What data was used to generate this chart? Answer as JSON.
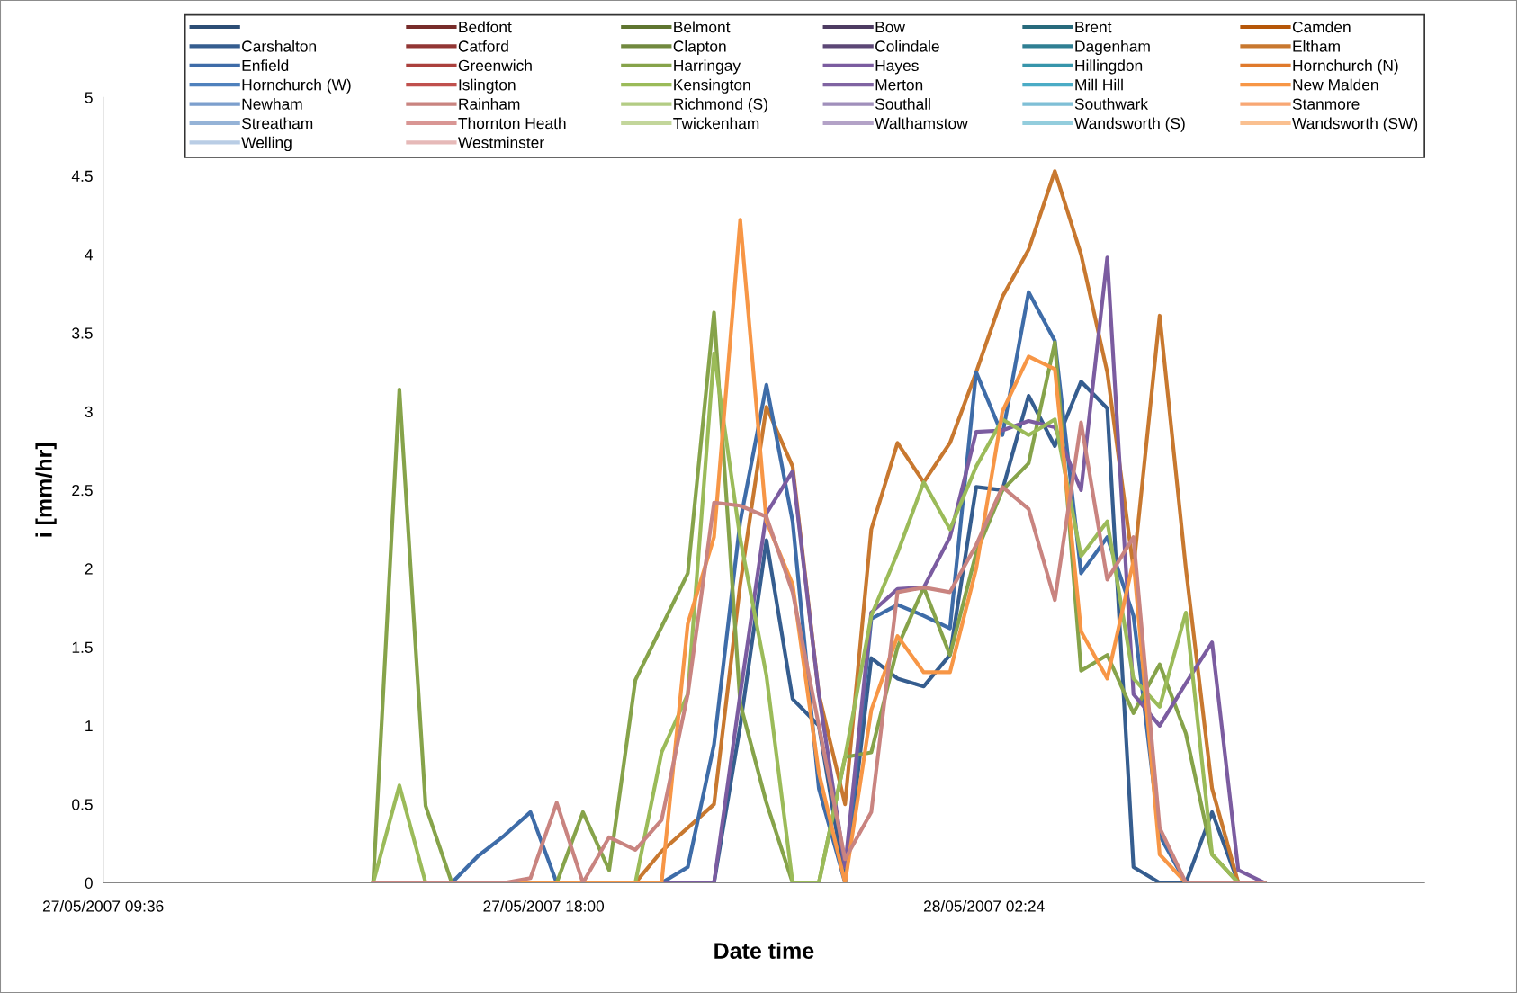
{
  "chart_data": {
    "type": "line",
    "xlabel": "Date time",
    "ylabel": "i [mm/hr]",
    "x": [
      "2007-05-27T14:45",
      "2007-05-27T15:15",
      "2007-05-27T15:45",
      "2007-05-27T16:15",
      "2007-05-27T16:45",
      "2007-05-27T17:15",
      "2007-05-27T17:45",
      "2007-05-27T18:15",
      "2007-05-27T18:45",
      "2007-05-27T19:15",
      "2007-05-27T19:45",
      "2007-05-27T20:15",
      "2007-05-27T20:45",
      "2007-05-27T21:15",
      "2007-05-27T21:45",
      "2007-05-27T22:15",
      "2007-05-27T22:45",
      "2007-05-27T23:15",
      "2007-05-27T23:45",
      "2007-05-28T00:15",
      "2007-05-28T00:45",
      "2007-05-28T01:15",
      "2007-05-28T01:45",
      "2007-05-28T02:15",
      "2007-05-28T02:45",
      "2007-05-28T03:15",
      "2007-05-28T03:45",
      "2007-05-28T04:15",
      "2007-05-28T04:45",
      "2007-05-28T05:15",
      "2007-05-28T05:45",
      "2007-05-28T06:15",
      "2007-05-28T06:45",
      "2007-05-28T07:15",
      "2007-05-28T07:45"
    ],
    "xlim": [
      "2007-05-27T09:36",
      "2007-05-28T10:48"
    ],
    "xticks": [
      {
        "value": "2007-05-27T09:36",
        "label": "27/05/2007 09:36"
      },
      {
        "value": "2007-05-27T18:00",
        "label": "27/05/2007 18:00"
      },
      {
        "value": "2007-05-28T02:24",
        "label": "28/05/2007 02:24"
      }
    ],
    "ylim": [
      0,
      5
    ],
    "yticks": [
      0,
      0.5,
      1,
      1.5,
      2,
      2.5,
      3,
      3.5,
      4,
      4.5,
      5
    ],
    "legend": "top",
    "grid": false,
    "series": [
      {
        "color": "#2c4d75",
        "values": [
          null,
          null,
          null,
          null,
          null,
          null,
          null,
          null,
          null,
          null,
          null,
          null,
          null,
          null,
          null,
          null,
          null,
          null,
          null,
          null,
          null,
          null,
          null,
          null,
          null,
          null,
          null,
          null,
          null,
          null,
          null,
          null,
          null,
          null,
          null
        ]
      },
      {
        "name": "Bedfont",
        "color": "#772c2a",
        "values": [
          null,
          null,
          null,
          null,
          null,
          null,
          null,
          null,
          null,
          null,
          null,
          null,
          null,
          null,
          null,
          null,
          null,
          null,
          null,
          null,
          null,
          null,
          null,
          null,
          null,
          null,
          null,
          null,
          null,
          null,
          null,
          null,
          null,
          null,
          null
        ]
      },
      {
        "name": "Belmont",
        "color": "#5f7530",
        "values": [
          null,
          null,
          null,
          null,
          null,
          null,
          null,
          null,
          null,
          null,
          null,
          null,
          null,
          null,
          null,
          null,
          null,
          null,
          null,
          null,
          null,
          null,
          null,
          null,
          null,
          null,
          null,
          null,
          null,
          null,
          null,
          null,
          null,
          null,
          null
        ]
      },
      {
        "name": "Bow",
        "color": "#4d3b62",
        "values": [
          null,
          null,
          null,
          null,
          null,
          null,
          null,
          null,
          null,
          null,
          null,
          null,
          null,
          null,
          null,
          null,
          null,
          null,
          null,
          null,
          null,
          null,
          null,
          null,
          null,
          null,
          null,
          null,
          null,
          null,
          null,
          null,
          null,
          null,
          null
        ]
      },
      {
        "name": "Brent",
        "color": "#276a7c",
        "values": [
          null,
          null,
          null,
          null,
          null,
          null,
          null,
          null,
          null,
          null,
          null,
          null,
          null,
          null,
          null,
          null,
          null,
          null,
          null,
          null,
          null,
          null,
          null,
          null,
          null,
          null,
          null,
          null,
          null,
          null,
          null,
          null,
          null,
          null,
          null
        ]
      },
      {
        "name": "Camden",
        "color": "#b65708",
        "values": [
          null,
          null,
          null,
          null,
          null,
          null,
          null,
          null,
          null,
          null,
          null,
          null,
          null,
          null,
          null,
          null,
          null,
          null,
          null,
          null,
          null,
          null,
          null,
          null,
          null,
          null,
          null,
          null,
          null,
          null,
          null,
          null,
          null,
          null,
          null
        ]
      },
      {
        "name": "Carshalton",
        "color": "#355d8f",
        "values": [
          null,
          null,
          0,
          0,
          0,
          0,
          0,
          0,
          0,
          0,
          0,
          0,
          0,
          0,
          1.0,
          2.18,
          1.17,
          1.0,
          0,
          1.43,
          1.3,
          1.25,
          1.45,
          2.52,
          2.5,
          3.1,
          2.78,
          3.19,
          3.02,
          0.1,
          0,
          0,
          0.45,
          0,
          0
        ]
      },
      {
        "name": "Catford",
        "color": "#923634",
        "values": [
          null,
          null,
          null,
          null,
          null,
          null,
          null,
          null,
          null,
          null,
          null,
          null,
          null,
          null,
          null,
          null,
          null,
          null,
          null,
          null,
          null,
          null,
          null,
          null,
          null,
          null,
          null,
          null,
          null,
          null,
          null,
          null,
          null,
          null,
          null
        ]
      },
      {
        "name": "Clapton",
        "color": "#71893f",
        "values": [
          null,
          null,
          null,
          null,
          null,
          null,
          null,
          null,
          null,
          null,
          null,
          null,
          null,
          null,
          null,
          null,
          null,
          null,
          null,
          null,
          null,
          null,
          null,
          null,
          null,
          null,
          null,
          null,
          null,
          null,
          null,
          null,
          null,
          null,
          null
        ]
      },
      {
        "name": "Colindale",
        "color": "#5c4776",
        "values": [
          null,
          null,
          null,
          null,
          null,
          null,
          null,
          null,
          null,
          null,
          null,
          null,
          null,
          null,
          null,
          null,
          null,
          null,
          null,
          null,
          null,
          null,
          null,
          null,
          null,
          null,
          null,
          null,
          null,
          null,
          null,
          null,
          null,
          null,
          null
        ]
      },
      {
        "name": "Dagenham",
        "color": "#2f7f93",
        "values": [
          null,
          null,
          null,
          null,
          null,
          null,
          null,
          null,
          null,
          null,
          null,
          null,
          null,
          null,
          null,
          null,
          null,
          null,
          null,
          null,
          null,
          null,
          null,
          null,
          null,
          null,
          null,
          null,
          null,
          null,
          null,
          null,
          null,
          null,
          null
        ]
      },
      {
        "name": "Eltham",
        "color": "#c8782f",
        "values": [
          0,
          0,
          0,
          0,
          0,
          0,
          0,
          0,
          0,
          0,
          0,
          0.2,
          0.35,
          0.5,
          1.9,
          3.03,
          2.65,
          1.2,
          0.5,
          2.25,
          2.8,
          2.55,
          2.8,
          3.25,
          3.73,
          4.03,
          4.53,
          4.0,
          3.25,
          2.0,
          3.61,
          2.0,
          0.6,
          0,
          0
        ]
      },
      {
        "name": "Enfield",
        "color": "#3e6ca8",
        "values": [
          null,
          null,
          0,
          0,
          0.17,
          0.3,
          0.45,
          0,
          0,
          0,
          0,
          0,
          0.1,
          0.88,
          2.3,
          3.17,
          2.3,
          0.6,
          0,
          1.68,
          1.77,
          1.7,
          1.62,
          3.25,
          2.85,
          3.76,
          3.45,
          1.97,
          2.2,
          1.7,
          0.3,
          0,
          0,
          0,
          0
        ]
      },
      {
        "name": "Greenwich",
        "color": "#ab403d",
        "values": [
          null,
          null,
          null,
          null,
          null,
          null,
          null,
          null,
          null,
          null,
          null,
          null,
          null,
          null,
          null,
          null,
          null,
          null,
          null,
          null,
          null,
          null,
          null,
          null,
          null,
          null,
          null,
          null,
          null,
          null,
          null,
          null,
          null,
          null,
          null
        ]
      },
      {
        "name": "Harringay",
        "color": "#86a34a",
        "values": [
          0,
          3.14,
          0.49,
          0,
          0,
          0,
          0,
          0,
          0.45,
          0.08,
          1.29,
          1.63,
          1.97,
          3.63,
          1.14,
          0.51,
          0,
          0,
          0.8,
          0.83,
          1.5,
          1.88,
          1.45,
          2.1,
          2.5,
          2.67,
          3.44,
          1.35,
          1.45,
          1.08,
          1.39,
          0.95,
          0.18,
          0,
          0
        ]
      },
      {
        "name": "Hayes",
        "color": "#7b5ca0",
        "values": [
          null,
          null,
          0,
          0,
          0,
          0,
          0,
          0,
          0,
          0,
          0,
          0,
          0,
          0,
          1.2,
          2.35,
          2.62,
          1.2,
          0.1,
          1.72,
          1.87,
          1.88,
          2.2,
          2.87,
          2.88,
          2.94,
          2.9,
          2.5,
          3.98,
          1.2,
          1.0,
          1.27,
          1.53,
          0.08,
          0
        ]
      },
      {
        "name": "Hillingdon",
        "color": "#3795ab",
        "values": [
          null,
          null,
          null,
          null,
          null,
          null,
          null,
          null,
          null,
          null,
          null,
          null,
          null,
          null,
          null,
          null,
          null,
          null,
          null,
          null,
          null,
          null,
          null,
          null,
          null,
          null,
          null,
          null,
          null,
          null,
          null,
          null,
          null,
          null,
          null
        ]
      },
      {
        "name": "Hornchurch (N)",
        "color": "#e07a2c",
        "values": [
          null,
          null,
          null,
          null,
          null,
          null,
          null,
          null,
          null,
          null,
          null,
          null,
          null,
          null,
          null,
          null,
          null,
          null,
          null,
          null,
          null,
          null,
          null,
          null,
          null,
          null,
          null,
          null,
          null,
          null,
          null,
          null,
          null,
          null,
          null
        ]
      },
      {
        "name": "Hornchurch (W)",
        "color": "#4f81bd",
        "values": [
          null,
          null,
          null,
          null,
          null,
          null,
          null,
          null,
          null,
          null,
          null,
          null,
          null,
          null,
          null,
          null,
          null,
          null,
          null,
          null,
          null,
          null,
          null,
          null,
          null,
          null,
          null,
          null,
          null,
          null,
          null,
          null,
          null,
          null,
          null
        ]
      },
      {
        "name": "Islington",
        "color": "#c0504d",
        "values": [
          null,
          null,
          null,
          null,
          null,
          null,
          null,
          null,
          null,
          null,
          null,
          null,
          null,
          null,
          null,
          null,
          null,
          null,
          null,
          null,
          null,
          null,
          null,
          null,
          null,
          null,
          null,
          null,
          null,
          null,
          null,
          null,
          null,
          null,
          null
        ]
      },
      {
        "name": "Kensington",
        "color": "#9bbb59",
        "values": [
          0,
          0.62,
          0,
          0,
          0,
          0,
          0,
          0,
          0,
          0,
          0,
          0.83,
          1.2,
          3.37,
          2.19,
          1.32,
          0,
          0,
          0.8,
          1.7,
          2.1,
          2.55,
          2.25,
          2.65,
          2.95,
          2.85,
          2.95,
          2.08,
          2.3,
          1.3,
          1.12,
          1.72,
          0.18,
          0,
          0
        ]
      },
      {
        "name": "Merton",
        "color": "#8064a2",
        "values": [
          null,
          null,
          null,
          null,
          null,
          null,
          null,
          null,
          null,
          null,
          null,
          null,
          null,
          null,
          null,
          null,
          null,
          null,
          null,
          null,
          null,
          null,
          null,
          null,
          null,
          null,
          null,
          null,
          null,
          null,
          null,
          null,
          null,
          null,
          null
        ]
      },
      {
        "name": "Mill Hill",
        "color": "#4bacc6",
        "values": [
          null,
          null,
          null,
          null,
          null,
          null,
          null,
          null,
          null,
          null,
          null,
          null,
          null,
          null,
          null,
          null,
          null,
          null,
          null,
          null,
          null,
          null,
          null,
          null,
          null,
          null,
          null,
          null,
          null,
          null,
          null,
          null,
          null,
          null,
          null
        ]
      },
      {
        "name": "New Malden",
        "color": "#f79646",
        "values": [
          null,
          null,
          null,
          null,
          0,
          0,
          0,
          0,
          0,
          0,
          0,
          0,
          1.65,
          2.2,
          4.22,
          2.3,
          1.9,
          0.7,
          0,
          1.1,
          1.57,
          1.34,
          1.34,
          2.0,
          3.0,
          3.35,
          3.27,
          1.6,
          1.3,
          2.05,
          0.18,
          0,
          0,
          null,
          null
        ]
      },
      {
        "name": "Newham",
        "color": "#7c9fcd",
        "values": [
          null,
          null,
          null,
          null,
          null,
          null,
          null,
          null,
          null,
          null,
          null,
          null,
          null,
          null,
          null,
          null,
          null,
          null,
          null,
          null,
          null,
          null,
          null,
          null,
          null,
          null,
          null,
          null,
          null,
          null,
          null,
          null,
          null,
          null,
          null
        ]
      },
      {
        "name": "Rainham",
        "color": "#c98480",
        "values": [
          0,
          0,
          0,
          0,
          0,
          0,
          0.03,
          0.51,
          0,
          0.29,
          0.21,
          0.4,
          1.2,
          2.42,
          2.4,
          2.33,
          1.85,
          1.0,
          0.15,
          0.45,
          1.85,
          1.88,
          1.85,
          2.15,
          2.52,
          2.38,
          1.8,
          2.93,
          1.93,
          2.2,
          0.35,
          0,
          0,
          0,
          0
        ]
      },
      {
        "name": "Richmond (S)",
        "color": "#b3cc84",
        "values": [
          null,
          null,
          null,
          null,
          null,
          null,
          null,
          null,
          null,
          null,
          null,
          null,
          null,
          null,
          null,
          null,
          null,
          null,
          null,
          null,
          null,
          null,
          null,
          null,
          null,
          null,
          null,
          null,
          null,
          null,
          null,
          null,
          null,
          null,
          null
        ]
      },
      {
        "name": "Southall",
        "color": "#a08fbb",
        "values": [
          null,
          null,
          null,
          null,
          null,
          null,
          null,
          null,
          null,
          null,
          null,
          null,
          null,
          null,
          null,
          null,
          null,
          null,
          null,
          null,
          null,
          null,
          null,
          null,
          null,
          null,
          null,
          null,
          null,
          null,
          null,
          null,
          null,
          null,
          null
        ]
      },
      {
        "name": "Southwark",
        "color": "#7fbfd6",
        "values": [
          null,
          null,
          null,
          null,
          null,
          null,
          null,
          null,
          null,
          null,
          null,
          null,
          null,
          null,
          null,
          null,
          null,
          null,
          null,
          null,
          null,
          null,
          null,
          null,
          null,
          null,
          null,
          null,
          null,
          null,
          null,
          null,
          null,
          null,
          null
        ]
      },
      {
        "name": "Stanmore",
        "color": "#f8a774",
        "values": [
          null,
          null,
          null,
          null,
          null,
          null,
          null,
          null,
          null,
          null,
          null,
          null,
          null,
          null,
          null,
          null,
          null,
          null,
          null,
          null,
          null,
          null,
          null,
          null,
          null,
          null,
          null,
          null,
          null,
          null,
          null,
          null,
          null,
          null,
          null
        ]
      },
      {
        "name": "Streatham",
        "color": "#95b3d7",
        "values": [
          null,
          null,
          null,
          null,
          null,
          null,
          null,
          null,
          null,
          null,
          null,
          null,
          null,
          null,
          null,
          null,
          null,
          null,
          null,
          null,
          null,
          null,
          null,
          null,
          null,
          null,
          null,
          null,
          null,
          null,
          null,
          null,
          null,
          null,
          null
        ]
      },
      {
        "name": "Thornton Heath",
        "color": "#d99694",
        "values": [
          null,
          null,
          null,
          null,
          null,
          null,
          null,
          null,
          null,
          null,
          null,
          null,
          null,
          null,
          null,
          null,
          null,
          null,
          null,
          null,
          null,
          null,
          null,
          null,
          null,
          null,
          null,
          null,
          null,
          null,
          null,
          null,
          null,
          null,
          null
        ]
      },
      {
        "name": "Twickenham",
        "color": "#c3d69b",
        "values": [
          null,
          null,
          null,
          null,
          null,
          null,
          null,
          null,
          null,
          null,
          null,
          null,
          null,
          null,
          null,
          null,
          null,
          null,
          null,
          null,
          null,
          null,
          null,
          null,
          null,
          null,
          null,
          null,
          null,
          null,
          null,
          null,
          null,
          null,
          null
        ]
      },
      {
        "name": "Walthamstow",
        "color": "#b3a2c7",
        "values": [
          null,
          null,
          null,
          null,
          null,
          null,
          null,
          null,
          null,
          null,
          null,
          null,
          null,
          null,
          null,
          null,
          null,
          null,
          null,
          null,
          null,
          null,
          null,
          null,
          null,
          null,
          null,
          null,
          null,
          null,
          null,
          null,
          null,
          null,
          null
        ]
      },
      {
        "name": "Wandsworth (S)",
        "color": "#93cddd",
        "values": [
          null,
          null,
          null,
          null,
          null,
          null,
          null,
          null,
          null,
          null,
          null,
          null,
          null,
          null,
          null,
          null,
          null,
          null,
          null,
          null,
          null,
          null,
          null,
          null,
          null,
          null,
          null,
          null,
          null,
          null,
          null,
          null,
          null,
          null,
          null
        ]
      },
      {
        "name": "Wandsworth (SW)",
        "color": "#fac090",
        "values": [
          null,
          null,
          null,
          null,
          null,
          null,
          null,
          null,
          null,
          null,
          null,
          null,
          null,
          null,
          null,
          null,
          null,
          null,
          null,
          null,
          null,
          null,
          null,
          null,
          null,
          null,
          null,
          null,
          null,
          null,
          null,
          null,
          null,
          null,
          null
        ]
      },
      {
        "name": "Welling",
        "color": "#b9cde5",
        "values": [
          null,
          null,
          null,
          null,
          null,
          null,
          null,
          null,
          null,
          null,
          null,
          null,
          null,
          null,
          null,
          null,
          null,
          null,
          null,
          null,
          null,
          null,
          null,
          null,
          null,
          null,
          null,
          null,
          null,
          null,
          null,
          null,
          null,
          null,
          null
        ]
      },
      {
        "name": "Westminster",
        "color": "#e6b9b8",
        "values": [
          null,
          null,
          null,
          null,
          null,
          null,
          null,
          null,
          null,
          null,
          null,
          null,
          null,
          null,
          null,
          null,
          null,
          null,
          null,
          null,
          null,
          null,
          null,
          null,
          null,
          null,
          null,
          null,
          null,
          null,
          null,
          null,
          null,
          null,
          null
        ]
      }
    ]
  }
}
